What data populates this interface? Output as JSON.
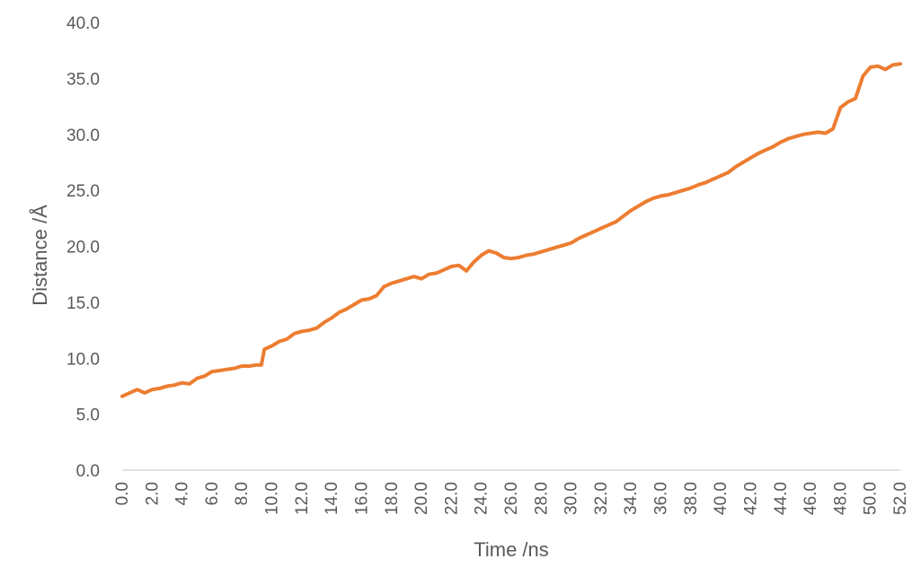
{
  "chart_data": {
    "type": "line",
    "title": "",
    "xlabel": "Time /ns",
    "ylabel": "Distance /Å",
    "xlim": [
      0,
      52
    ],
    "ylim": [
      0,
      40
    ],
    "x_ticks": [
      "0.0",
      "2.0",
      "4.0",
      "6.0",
      "8.0",
      "10.0",
      "12.0",
      "14.0",
      "16.0",
      "18.0",
      "20.0",
      "22.0",
      "24.0",
      "26.0",
      "28.0",
      "30.0",
      "32.0",
      "34.0",
      "36.0",
      "38.0",
      "40.0",
      "42.0",
      "44.0",
      "46.0",
      "48.0",
      "50.0",
      "52.0"
    ],
    "y_ticks": [
      "0.0",
      "5.0",
      "10.0",
      "15.0",
      "20.0",
      "25.0",
      "30.0",
      "35.0",
      "40.0"
    ],
    "grid": false,
    "legend": "none",
    "series": [
      {
        "color": "#ED7D31",
        "x": [
          0,
          0.5,
          1,
          1.5,
          2,
          2.5,
          3,
          3.5,
          4,
          4.5,
          5,
          5.5,
          6,
          6.5,
          7,
          7.5,
          8,
          8.5,
          9,
          9.3,
          9.5,
          10,
          10.5,
          11,
          11.5,
          12,
          12.5,
          13,
          13.5,
          14,
          14.5,
          15,
          15.5,
          16,
          16.5,
          17,
          17.5,
          18,
          18.5,
          19,
          19.5,
          20,
          20.5,
          21,
          21.5,
          22,
          22.5,
          23,
          23.5,
          24,
          24.5,
          25,
          25.5,
          26,
          26.5,
          27,
          27.5,
          28,
          28.5,
          29,
          29.5,
          30,
          30.5,
          31,
          31.5,
          32,
          32.5,
          33,
          33.5,
          34,
          34.5,
          35,
          35.5,
          36,
          36.5,
          37,
          37.5,
          38,
          38.5,
          39,
          39.5,
          40,
          40.5,
          41,
          41.5,
          42,
          42.5,
          43,
          43.5,
          44,
          44.5,
          45,
          45.5,
          46,
          46.5,
          47,
          47.5,
          48,
          48.5,
          49,
          49.5,
          50,
          50.5,
          51,
          51.5,
          52
        ],
        "y": [
          6.6,
          6.9,
          7.2,
          6.9,
          7.2,
          7.3,
          7.5,
          7.6,
          7.8,
          7.7,
          8.2,
          8.4,
          8.8,
          8.9,
          9.0,
          9.1,
          9.3,
          9.3,
          9.4,
          9.4,
          10.8,
          11.1,
          11.5,
          11.7,
          12.2,
          12.4,
          12.5,
          12.7,
          13.2,
          13.6,
          14.1,
          14.4,
          14.8,
          15.2,
          15.3,
          15.6,
          16.4,
          16.7,
          16.9,
          17.1,
          17.3,
          17.1,
          17.5,
          17.6,
          17.9,
          18.2,
          18.3,
          17.8,
          18.6,
          19.2,
          19.6,
          19.4,
          19.0,
          18.9,
          19.0,
          19.2,
          19.3,
          19.5,
          19.7,
          19.9,
          20.1,
          20.3,
          20.7,
          21.0,
          21.3,
          21.6,
          21.9,
          22.2,
          22.7,
          23.2,
          23.6,
          24.0,
          24.3,
          24.5,
          24.6,
          24.8,
          25.0,
          25.2,
          25.5,
          25.7,
          26.0,
          26.3,
          26.6,
          27.1,
          27.5,
          27.9,
          28.3,
          28.6,
          28.9,
          29.3,
          29.6,
          29.8,
          30.0,
          30.1,
          30.2,
          30.1,
          30.5,
          32.4,
          32.9,
          33.2,
          35.2,
          36.0,
          36.1,
          35.8,
          36.2,
          36.3
        ]
      }
    ]
  }
}
